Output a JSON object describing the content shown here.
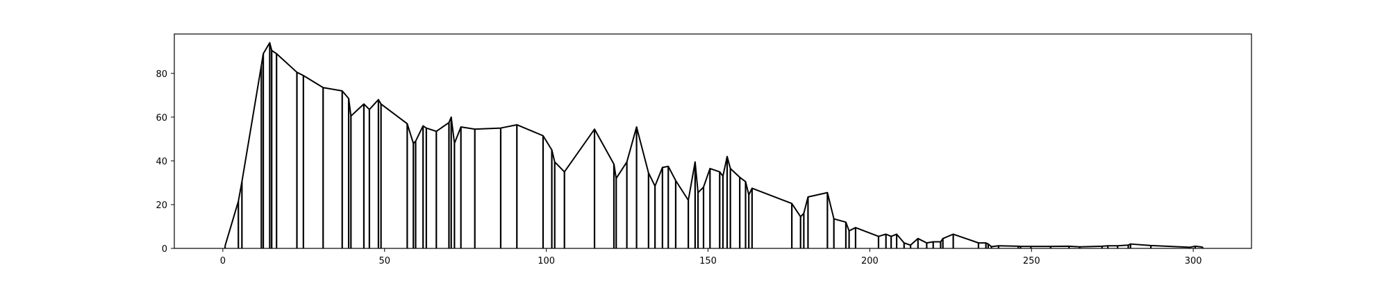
{
  "colors": {
    "background": "#ffffff",
    "line": "#000000",
    "axis": "#000000"
  },
  "chart_data": {
    "type": "line",
    "title": "",
    "xlabel": "",
    "ylabel": "",
    "xlim": [
      -15,
      318
    ],
    "ylim": [
      0,
      98
    ],
    "grid": false,
    "legend": "none",
    "xticks": [
      0,
      50,
      100,
      150,
      200,
      250,
      300
    ],
    "yticks": [
      0,
      20,
      40,
      60,
      80
    ],
    "xtick_labels": [
      "0",
      "50",
      "100",
      "150",
      "200",
      "250",
      "300"
    ],
    "ytick_labels": [
      "0",
      "20",
      "40",
      "60",
      "80"
    ],
    "stems": true,
    "series": [
      {
        "x": [
          0.7,
          4.8,
          5.9,
          11.9,
          12.5,
          14.5,
          15.1,
          16.6,
          22.9,
          24.9,
          31.0,
          36.9,
          38.9,
          39.6,
          43.6,
          45.3,
          48.1,
          48.9,
          57.0,
          58.9,
          59.6,
          61.9,
          62.9,
          66.0,
          69.9,
          70.6,
          71.6,
          73.6,
          77.9,
          85.9,
          90.9,
          99.0,
          101.7,
          102.6,
          105.6,
          114.9,
          120.9,
          121.6,
          124.9,
          127.9,
          131.6,
          133.6,
          135.9,
          137.7,
          140.0,
          143.9,
          146.0,
          146.9,
          148.6,
          150.6,
          153.6,
          154.6,
          155.9,
          156.9,
          159.8,
          161.6,
          162.6,
          163.6,
          175.9,
          178.6,
          179.6,
          180.9,
          186.9,
          188.9,
          192.6,
          193.6,
          195.6,
          202.7,
          205.0,
          206.6,
          208.3,
          210.6,
          212.6,
          214.9,
          217.6,
          219.6,
          221.9,
          222.6,
          225.8,
          233.6,
          235.9,
          236.6,
          237.6,
          239.8,
          245.9,
          246.6,
          249.8,
          255.9,
          261.6,
          264.9,
          271.8,
          273.6,
          276.6,
          279.9,
          280.6,
          286.9,
          298.9,
          300.6,
          302.9
        ],
        "y": [
          1.2,
          21.5,
          30.5,
          83.5,
          89.0,
          94.0,
          90.5,
          89.0,
          80.5,
          79.0,
          73.5,
          72.0,
          68.5,
          60.5,
          66.0,
          63.5,
          68.0,
          66.0,
          57.0,
          48.0,
          49.0,
          56.0,
          55.0,
          53.5,
          57.5,
          60.0,
          48.0,
          55.5,
          54.5,
          55.0,
          56.5,
          51.5,
          45.0,
          39.5,
          35.0,
          54.5,
          38.5,
          32.0,
          39.5,
          55.5,
          34.5,
          28.5,
          37.0,
          37.5,
          31.0,
          22.0,
          39.5,
          25.5,
          28.0,
          36.5,
          35.0,
          33.0,
          42.0,
          36.5,
          32.5,
          30.5,
          24.5,
          27.5,
          20.5,
          14.5,
          16.0,
          23.5,
          25.5,
          13.5,
          12.0,
          8.0,
          9.5,
          5.5,
          6.5,
          5.5,
          6.5,
          2.5,
          1.5,
          4.5,
          2.5,
          3.0,
          3.0,
          4.5,
          6.5,
          2.5,
          2.5,
          2.0,
          0.8,
          1.2,
          1.0,
          0.9,
          0.9,
          0.9,
          1.0,
          0.7,
          1.0,
          1.2,
          1.2,
          1.5,
          2.0,
          1.3,
          0.5,
          1.0,
          0.6
        ]
      }
    ]
  }
}
